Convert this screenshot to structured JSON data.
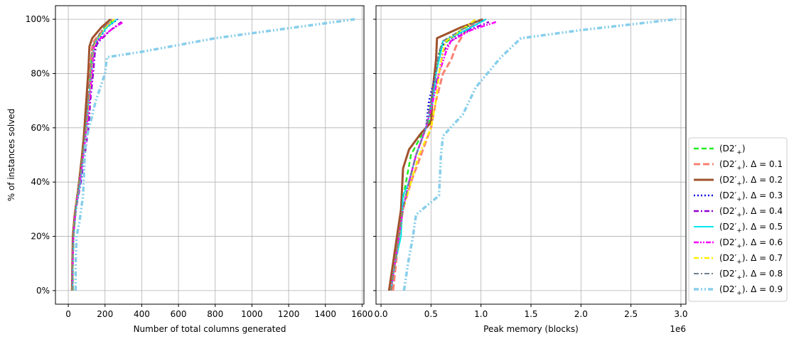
{
  "chart_data": [
    {
      "type": "line",
      "xlabel": "Number of total columns generated",
      "ylabel": "% of instances solved",
      "xlim": [
        -70,
        1610
      ],
      "ylim": [
        -5,
        105
      ],
      "xticks": [
        0,
        200,
        400,
        600,
        800,
        1000,
        1200,
        1400,
        1600
      ],
      "xtick_labels": [
        "0",
        "200",
        "400",
        "600",
        "800",
        "1000",
        "1200",
        "1400",
        "1600"
      ],
      "yticks": [
        0,
        20,
        40,
        60,
        80,
        100
      ],
      "ytick_labels": [
        "0%",
        "20%",
        "40%",
        "60%",
        "80%",
        "100%"
      ],
      "grid": true,
      "series": [
        {
          "name": "(D2′₊)",
          "x": [
            25,
            25,
            28,
            40,
            60,
            82,
            95,
            108,
            120,
            132,
            148,
            200,
            250
          ],
          "y": [
            0,
            10,
            20,
            30,
            40,
            50,
            60,
            70,
            80,
            90,
            92,
            97,
            100
          ]
        },
        {
          "name": "(D2′₊). Δ = 0.1",
          "x": [
            22,
            23,
            27,
            40,
            62,
            80,
            92,
            105,
            118,
            130,
            140,
            200,
            240
          ],
          "y": [
            0,
            10,
            20,
            30,
            40,
            50,
            60,
            70,
            80,
            90,
            92,
            97,
            100
          ]
        },
        {
          "name": "(D2′₊). Δ = 0.2",
          "x": [
            20,
            22,
            25,
            35,
            55,
            75,
            85,
            98,
            110,
            115,
            130,
            180,
            230
          ],
          "y": [
            0,
            10,
            20,
            28,
            38,
            50,
            57,
            70,
            82,
            90,
            93,
            97,
            100
          ]
        },
        {
          "name": "(D2′₊). Δ = 0.3",
          "x": [
            22,
            24,
            28,
            42,
            65,
            85,
            100,
            115,
            130,
            145,
            160,
            210,
            270
          ],
          "y": [
            0,
            10,
            20,
            30,
            40,
            50,
            60,
            70,
            80,
            88,
            92,
            97,
            100
          ]
        },
        {
          "name": "(D2′₊). Δ = 0.4",
          "x": [
            22,
            24,
            28,
            42,
            68,
            90,
            110,
            120,
            135,
            148,
            170,
            230,
            290
          ],
          "y": [
            0,
            10,
            20,
            30,
            40,
            50,
            60,
            70,
            80,
            90,
            92,
            96,
            99
          ]
        },
        {
          "name": "(D2′₊). Δ = 0.5",
          "x": [
            23,
            25,
            30,
            42,
            65,
            82,
            98,
            112,
            125,
            140,
            152,
            210,
            265
          ],
          "y": [
            0,
            10,
            20,
            30,
            40,
            50,
            60,
            70,
            80,
            90,
            92,
            97,
            100
          ]
        },
        {
          "name": "(D2′₊). Δ = 0.6",
          "x": [
            22,
            24,
            28,
            40,
            62,
            82,
            100,
            115,
            128,
            140,
            160,
            230,
            300
          ],
          "y": [
            0,
            10,
            20,
            30,
            40,
            50,
            60,
            70,
            80,
            90,
            92,
            96,
            99
          ]
        },
        {
          "name": "(D2′₊). Δ = 0.7",
          "x": [
            22,
            24,
            28,
            40,
            60,
            80,
            96,
            110,
            122,
            135,
            150,
            200,
            250
          ],
          "y": [
            0,
            10,
            20,
            30,
            40,
            50,
            60,
            70,
            80,
            90,
            92,
            97,
            100
          ]
        },
        {
          "name": "(D2′₊). Δ = 0.8",
          "x": [
            22,
            24,
            28,
            40,
            60,
            80,
            95,
            108,
            120,
            133,
            146,
            195,
            235
          ],
          "y": [
            0,
            10,
            20,
            30,
            40,
            50,
            60,
            70,
            80,
            90,
            92,
            97,
            100
          ]
        },
        {
          "name": "(D2′₊). Δ = 0.9",
          "x": [
            40,
            40,
            45,
            60,
            80,
            90,
            95,
            150,
            200,
            210,
            400,
            800,
            1560
          ],
          "y": [
            0,
            10,
            20,
            25,
            35,
            50,
            55,
            70,
            80,
            86,
            88,
            93,
            100
          ]
        }
      ]
    },
    {
      "type": "line",
      "xlabel": "Peak memory (blocks)",
      "ylabel": "",
      "offset_label": "1e6",
      "xlim": [
        -0.05,
        3.05
      ],
      "ylim": [
        -5,
        105
      ],
      "xticks": [
        0.0,
        0.5,
        1.0,
        1.5,
        2.0,
        2.5,
        3.0
      ],
      "xtick_labels": [
        "0.0",
        "0.5",
        "1.0",
        "1.5",
        "2.0",
        "2.5",
        "3.0"
      ],
      "yticks": [
        0,
        20,
        40,
        60,
        80,
        100
      ],
      "grid": true,
      "series": [
        {
          "name": "(D2′₊)",
          "x": [
            0.1,
            0.13,
            0.17,
            0.2,
            0.25,
            0.3,
            0.4,
            0.48,
            0.5,
            0.55,
            0.6,
            0.8,
            1.0
          ],
          "y": [
            0,
            10,
            20,
            30,
            40,
            50,
            57,
            62,
            70,
            80,
            90,
            96,
            100
          ]
        },
        {
          "name": "(D2′₊). Δ = 0.1",
          "x": [
            0.12,
            0.15,
            0.18,
            0.22,
            0.3,
            0.4,
            0.5,
            0.55,
            0.62,
            0.7,
            0.75,
            0.85,
            1.0
          ],
          "y": [
            0,
            10,
            20,
            30,
            40,
            50,
            60,
            70,
            80,
            85,
            90,
            96,
            100
          ]
        },
        {
          "name": "(D2′₊). Δ = 0.2",
          "x": [
            0.08,
            0.12,
            0.16,
            0.2,
            0.22,
            0.28,
            0.4,
            0.5,
            0.52,
            0.55,
            0.56,
            0.8,
            1.02
          ],
          "y": [
            0,
            10,
            20,
            30,
            45,
            52,
            58,
            62,
            75,
            85,
            93,
            97,
            100
          ]
        },
        {
          "name": "(D2′₊). Δ = 0.3",
          "x": [
            0.1,
            0.14,
            0.18,
            0.22,
            0.28,
            0.35,
            0.45,
            0.48,
            0.55,
            0.58,
            0.65,
            0.85,
            1.05
          ],
          "y": [
            0,
            10,
            20,
            30,
            40,
            50,
            60,
            70,
            80,
            88,
            92,
            96,
            100
          ]
        },
        {
          "name": "(D2′₊). Δ = 0.4",
          "x": [
            0.1,
            0.14,
            0.18,
            0.22,
            0.28,
            0.35,
            0.45,
            0.5,
            0.58,
            0.62,
            0.7,
            0.88,
            1.08
          ],
          "y": [
            0,
            10,
            20,
            30,
            40,
            50,
            60,
            70,
            80,
            88,
            92,
            96,
            99
          ]
        },
        {
          "name": "(D2′₊). Δ = 0.5",
          "x": [
            0.1,
            0.14,
            0.2,
            0.22,
            0.28,
            0.35,
            0.45,
            0.52,
            0.55,
            0.6,
            0.62,
            0.85,
            1.05
          ],
          "y": [
            0,
            10,
            20,
            35,
            40,
            50,
            60,
            70,
            80,
            88,
            92,
            96,
            100
          ]
        },
        {
          "name": "(D2′₊). Δ = 0.6",
          "x": [
            0.1,
            0.14,
            0.18,
            0.22,
            0.28,
            0.35,
            0.45,
            0.52,
            0.58,
            0.65,
            0.7,
            0.9,
            1.15
          ],
          "y": [
            0,
            10,
            20,
            30,
            40,
            50,
            60,
            70,
            80,
            88,
            92,
            96,
            99
          ]
        },
        {
          "name": "(D2′₊). Δ = 0.7",
          "x": [
            0.1,
            0.14,
            0.18,
            0.22,
            0.3,
            0.38,
            0.5,
            0.55,
            0.58,
            0.62,
            0.65,
            0.8,
            0.95
          ],
          "y": [
            0,
            10,
            20,
            30,
            40,
            50,
            60,
            70,
            80,
            88,
            92,
            96,
            100
          ]
        },
        {
          "name": "(D2′₊). Δ = 0.8",
          "x": [
            0.1,
            0.14,
            0.18,
            0.22,
            0.28,
            0.35,
            0.45,
            0.5,
            0.55,
            0.58,
            0.62,
            0.8,
            1.0
          ],
          "y": [
            0,
            10,
            20,
            30,
            40,
            50,
            60,
            70,
            80,
            88,
            92,
            96,
            100
          ]
        },
        {
          "name": "(D2′₊). Δ = 0.9",
          "x": [
            0.23,
            0.27,
            0.32,
            0.35,
            0.58,
            0.6,
            0.62,
            0.82,
            0.95,
            1.2,
            1.4,
            2.0,
            2.95
          ],
          "y": [
            0,
            10,
            20,
            28,
            35,
            50,
            57,
            65,
            75,
            86,
            93,
            96,
            100
          ]
        }
      ]
    }
  ],
  "legend": {
    "placement": "right",
    "entries": [
      {
        "label_main": "(D2′",
        "label_sub": "+",
        "label_suffix": ")",
        "color": "#22ee22",
        "dash": "7,4",
        "width": 2.5
      },
      {
        "label_main": "(D2′",
        "label_sub": "+",
        "label_suffix": "). Δ = 0.1",
        "color": "#fa8072",
        "dash": "9,4",
        "width": 3
      },
      {
        "label_main": "(D2′",
        "label_sub": "+",
        "label_suffix": "). Δ = 0.2",
        "color": "#a0522d",
        "dash": "",
        "width": 3
      },
      {
        "label_main": "(D2′",
        "label_sub": "+",
        "label_suffix": "). Δ = 0.3",
        "color": "#1010e0",
        "dash": "2,3",
        "width": 2.5
      },
      {
        "label_main": "(D2′",
        "label_sub": "+",
        "label_suffix": "). Δ = 0.4",
        "color": "#9400d3",
        "dash": "7,3,2,3",
        "width": 2.5
      },
      {
        "label_main": "(D2′",
        "label_sub": "+",
        "label_suffix": "). Δ = 0.5",
        "color": "#00e5ee",
        "dash": "",
        "width": 2
      },
      {
        "label_main": "(D2′",
        "label_sub": "+",
        "label_suffix": "). Δ = 0.6",
        "color": "#ff00ff",
        "dash": "7,2,2,2,2,2",
        "width": 2.5
      },
      {
        "label_main": "(D2′",
        "label_sub": "+",
        "label_suffix": "). Δ = 0.7",
        "color": "#ffee00",
        "dash": "7,3,2,3",
        "width": 2.5
      },
      {
        "label_main": "(D2′",
        "label_sub": "+",
        "label_suffix": "). Δ = 0.8",
        "color": "#708090",
        "dash": "7,3,2,3",
        "width": 2
      },
      {
        "label_main": "(D2′",
        "label_sub": "+",
        "label_suffix": "). Δ = 0.9",
        "color": "#87ceeb",
        "dash": "7,3,2,3,2,3",
        "width": 3.5
      }
    ]
  }
}
